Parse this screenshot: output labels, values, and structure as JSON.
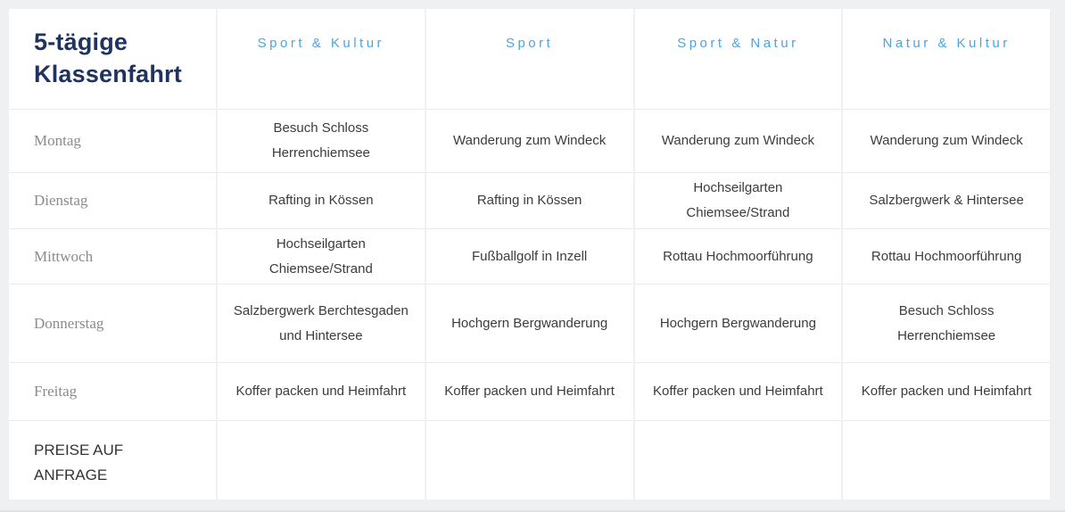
{
  "page": {
    "background_color": "#eef0f1",
    "title_color": "#1e3360",
    "header_color": "#4aa5e3",
    "day_label_color": "#8b8b8b",
    "cell_text_color": "#3c3c3c"
  },
  "table": {
    "title": "5-tägige Klassenfahrt",
    "columns": [
      "Sport & Kultur",
      "Sport",
      "Sport & Natur",
      "Natur & Kultur"
    ],
    "rows": [
      {
        "day": "Montag",
        "cells": [
          "Besuch Schloss Herrenchiemsee",
          "Wanderung zum Windeck",
          "Wanderung zum Windeck",
          "Wanderung zum Windeck"
        ]
      },
      {
        "day": "Dienstag",
        "cells": [
          "Rafting in Kössen",
          "Rafting in Kössen",
          "Hochseilgarten Chiemsee/Strand",
          "Salzbergwerk & Hintersee"
        ]
      },
      {
        "day": "Mittwoch",
        "cells": [
          "Hochseilgarten Chiemsee/Strand",
          "Fußballgolf in Inzell",
          "Rottau Hochmoorführung",
          "Rottau Hochmoorführung"
        ]
      },
      {
        "day": "Donnerstag",
        "cells": [
          "Salzbergwerk Berchtesgaden und Hintersee",
          "Hochgern Bergwanderung",
          "Hochgern Bergwanderung",
          "Besuch Schloss Herrenchiemsee"
        ]
      },
      {
        "day": "Freitag",
        "cells": [
          "Koffer packen und Heimfahrt",
          "Koffer packen und Heimfahrt",
          "Koffer packen und Heimfahrt",
          "Koffer packen und Heimfahrt"
        ]
      }
    ],
    "footer_note": "PREISE AUF ANFRAGE"
  }
}
